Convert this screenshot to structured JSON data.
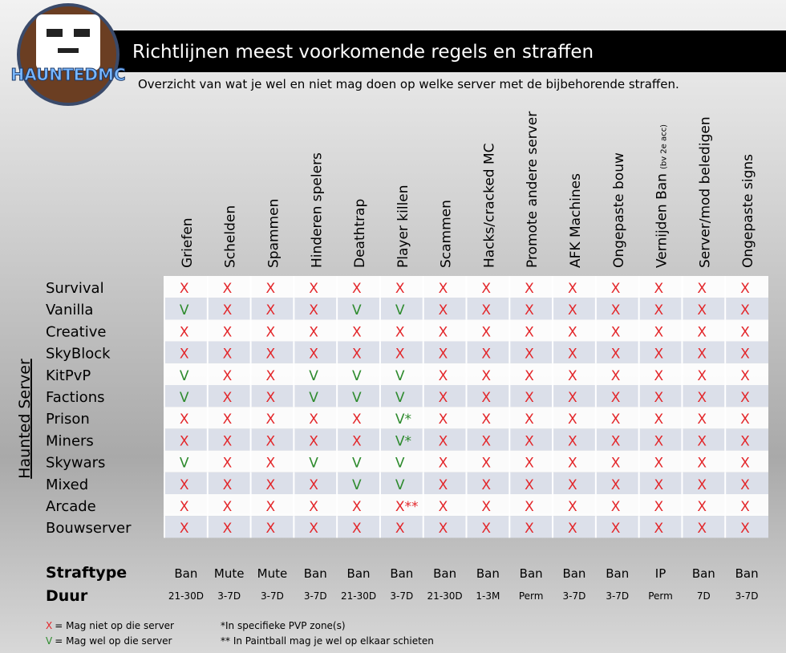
{
  "header": {
    "logo": "HAUNTEDMC",
    "title": "Richtlijnen meest voorkomende regels en straffen",
    "subtitle": "Overzicht van wat je wel en niet mag doen op welke server met de bijbehorende straffen."
  },
  "table": {
    "side_label": "Haunted Server",
    "columns": [
      {
        "label": "Griefen"
      },
      {
        "label": "Schelden"
      },
      {
        "label": "Spammen"
      },
      {
        "label": "Hinderen spelers"
      },
      {
        "label": "Deathtrap"
      },
      {
        "label": "Player killen"
      },
      {
        "label": "Scammen"
      },
      {
        "label": "Hacks/cracked MC"
      },
      {
        "label": "Promote andere server"
      },
      {
        "label": "AFK Machines"
      },
      {
        "label": "Ongepaste bouw"
      },
      {
        "label": "Vernijden Ban",
        "note": "(bv 2e acc)"
      },
      {
        "label": "Server/mod beledigen"
      },
      {
        "label": "Ongepaste signs"
      }
    ],
    "rows": [
      {
        "name": "Survival",
        "cells": [
          "X",
          "X",
          "X",
          "X",
          "X",
          "X",
          "X",
          "X",
          "X",
          "X",
          "X",
          "X",
          "X",
          "X"
        ]
      },
      {
        "name": "Vanilla",
        "cells": [
          "V",
          "X",
          "X",
          "X",
          "V",
          "V",
          "X",
          "X",
          "X",
          "X",
          "X",
          "X",
          "X",
          "X"
        ]
      },
      {
        "name": "Creative",
        "cells": [
          "X",
          "X",
          "X",
          "X",
          "X",
          "X",
          "X",
          "X",
          "X",
          "X",
          "X",
          "X",
          "X",
          "X"
        ]
      },
      {
        "name": "SkyBlock",
        "cells": [
          "X",
          "X",
          "X",
          "X",
          "X",
          "X",
          "X",
          "X",
          "X",
          "X",
          "X",
          "X",
          "X",
          "X"
        ]
      },
      {
        "name": "KitPvP",
        "cells": [
          "V",
          "X",
          "X",
          "V",
          "V",
          "V",
          "X",
          "X",
          "X",
          "X",
          "X",
          "X",
          "X",
          "X"
        ]
      },
      {
        "name": "Factions",
        "cells": [
          "V",
          "X",
          "X",
          "V",
          "V",
          "V",
          "X",
          "X",
          "X",
          "X",
          "X",
          "X",
          "X",
          "X"
        ]
      },
      {
        "name": "Prison",
        "cells": [
          "X",
          "X",
          "X",
          "X",
          "X",
          "V*",
          "X",
          "X",
          "X",
          "X",
          "X",
          "X",
          "X",
          "X"
        ]
      },
      {
        "name": "Miners",
        "cells": [
          "X",
          "X",
          "X",
          "X",
          "X",
          "V*",
          "X",
          "X",
          "X",
          "X",
          "X",
          "X",
          "X",
          "X"
        ]
      },
      {
        "name": "Skywars",
        "cells": [
          "V",
          "X",
          "X",
          "V",
          "V",
          "V",
          "X",
          "X",
          "X",
          "X",
          "X",
          "X",
          "X",
          "X"
        ]
      },
      {
        "name": "Mixed",
        "cells": [
          "X",
          "X",
          "X",
          "X",
          "V",
          "V",
          "X",
          "X",
          "X",
          "X",
          "X",
          "X",
          "X",
          "X"
        ]
      },
      {
        "name": "Arcade",
        "cells": [
          "X",
          "X",
          "X",
          "X",
          "X",
          "X**",
          "X",
          "X",
          "X",
          "X",
          "X",
          "X",
          "X",
          "X"
        ]
      },
      {
        "name": "Bouwserver",
        "cells": [
          "X",
          "X",
          "X",
          "X",
          "X",
          "X",
          "X",
          "X",
          "X",
          "X",
          "X",
          "X",
          "X",
          "X"
        ]
      }
    ],
    "penalties": [
      {
        "name": "Straftype",
        "values": [
          "Ban",
          "Mute",
          "Mute",
          "Ban",
          "Ban",
          "Ban",
          "Ban",
          "Ban",
          "Ban",
          "Ban",
          "Ban",
          "IP",
          "Ban",
          "Ban"
        ]
      },
      {
        "name": "Duur",
        "values": [
          "21-30D",
          "3-7D",
          "3-7D",
          "3-7D",
          "21-30D",
          "3-7D",
          "21-30D",
          "1-3M",
          "Perm",
          "3-7D",
          "3-7D",
          "Perm",
          "7D",
          "3-7D"
        ]
      }
    ]
  },
  "legend": {
    "items": [
      {
        "symbol": "X",
        "text": "= Mag niet op die server"
      },
      {
        "symbol": "V",
        "text": "= Mag wel op die server"
      }
    ],
    "notes": [
      "*In specifieke PVP zone(s)",
      "** In Paintball mag je wel op elkaar schieten"
    ]
  }
}
